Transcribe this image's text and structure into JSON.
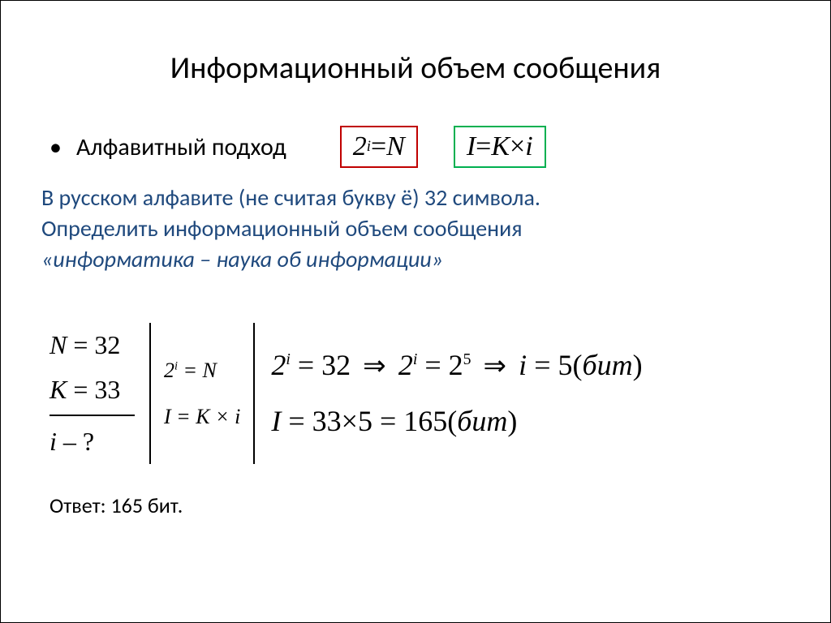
{
  "title": "Информационный объем сообщения",
  "subtitle": "Алфавитный подход",
  "formula1_html": "2<span class='sup'>i</span> <span class='up'>=</span> <i>N</i>",
  "formula2_html": "<i>I</i> <span class='up'>=</span> <i>K</i> <span class='up'>×</span> <i>i</i>",
  "problem_line1": "В русском алфавите (не считая букву ё) 32 символа.",
  "problem_line2": "Определить информационный объем сообщения",
  "problem_line3": "«информатика – наука об информации»",
  "given": {
    "n": "N = 32",
    "k": "K = 33",
    "q": "i – ?"
  },
  "mid_formulas": {
    "f1_html": "2<span class='sup'>i</span> = <i>N</i>",
    "f2_html": "<i>I</i> = <i>K</i> × <i>i</i>"
  },
  "work": {
    "line1_html": "2<span class='sup'>i</span> <span class='up'>= 32</span> <span class='arrow'>⇒</span> 2<span class='sup'>i</span> <span class='up'>= 2</span><span class='sup up'>5</span> <span class='arrow'>⇒</span> <i>i</i> <span class='up'>= 5(</span>бит<span class='up'>)</span>",
    "line2_html": "<i>I</i> <span class='up'>= 33×5 = 165(</span>бит<span class='up'>)</span>"
  },
  "answer": "Ответ: 165 бит.",
  "colors": {
    "text_dark": "#000000",
    "text_blue": "#1f497d",
    "box_red": "#c00000",
    "box_green": "#00b050",
    "background": "#ffffff"
  }
}
